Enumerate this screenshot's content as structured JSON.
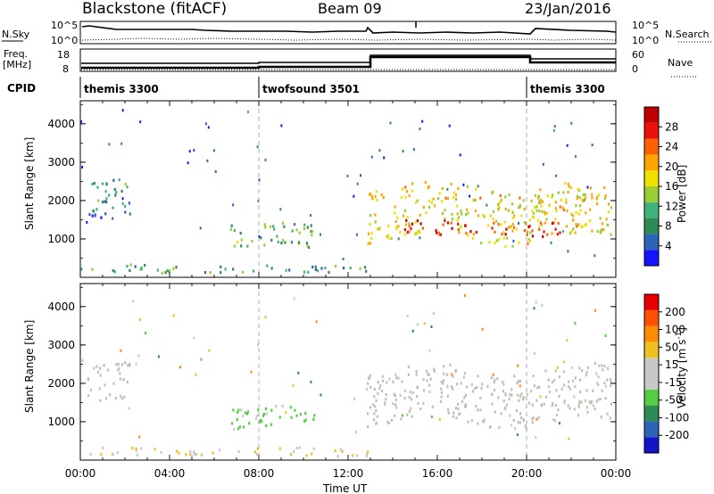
{
  "header": {
    "radar": "Blackstone (fitACF)",
    "beam": "Beam 09",
    "date": "23/Jan/2016"
  },
  "aux": {
    "nsky_label": "N.Sky",
    "nsearch_label": "N.Search",
    "freq_label": "Freq.",
    "freq_unit": "[MHz]",
    "nave_label": "Nave",
    "cpid_label": "CPID",
    "nsky_top_tick": "10^5",
    "nsky_bot_tick": "10^0",
    "nsearch_top_tick": "10^5",
    "nsearch_bot_tick": "10^0",
    "freq_ticks": [
      "18",
      "8"
    ],
    "nave_ticks": [
      "60",
      "0"
    ]
  },
  "cpid_segments": [
    {
      "label": "themis 3300",
      "start_hour": 0.0,
      "end_hour": 8.0
    },
    {
      "label": "twofsound 3501",
      "start_hour": 8.0,
      "end_hour": 20.0
    },
    {
      "label": "themis 3300",
      "start_hour": 20.0,
      "end_hour": 24.0
    }
  ],
  "colors": {
    "power_scale": [
      "#1414ff",
      "#2d64b4",
      "#2e8b57",
      "#3fb37b",
      "#9acd32",
      "#f0e000",
      "#ffa500",
      "#ff6000",
      "#e8120a",
      "#c00000"
    ],
    "velocity_scale": [
      "#1414c8",
      "#2e64b4",
      "#2e8b57",
      "#55cc44",
      "#c8c8c8",
      "#c8c8c8",
      "#f0c020",
      "#ff8c00",
      "#ff5000",
      "#e80000"
    ],
    "ground_scatter": "#c0c0b8"
  },
  "chart_data": [
    {
      "type": "heatmap",
      "name": "power",
      "ylabel": "Slant Range [km]",
      "xlim": [
        0,
        24
      ],
      "ylim": [
        0,
        4600
      ],
      "y_ticks": [
        "1000",
        "2000",
        "3000",
        "4000"
      ],
      "colorbar_label": "Power [dB]",
      "colorbar_ticks": [
        "28",
        "24",
        "20",
        "16",
        "12",
        "8",
        "4"
      ],
      "clim": [
        0,
        32
      ],
      "regions": [
        {
          "t0": 0.3,
          "t1": 2.2,
          "r0": 1500,
          "r1": 2500,
          "value": 8
        },
        {
          "t0": 6.7,
          "t1": 10.5,
          "r0": 800,
          "r1": 1400,
          "value": 12
        },
        {
          "t0": 12.8,
          "t1": 23.8,
          "r0": 1000,
          "r1": 2400,
          "value": 18
        },
        {
          "t0": 14.5,
          "t1": 21.5,
          "r0": 1100,
          "r1": 1500,
          "value": 27
        },
        {
          "t0": 0,
          "t1": 13,
          "r0": 150,
          "r1": 350,
          "value": 10
        }
      ]
    },
    {
      "type": "heatmap",
      "name": "velocity",
      "xlabel": "Time UT",
      "ylabel": "Slant Range [km]",
      "xlim": [
        0,
        24
      ],
      "ylim": [
        0,
        4600
      ],
      "x_ticks": [
        "00:00",
        "04:00",
        "08:00",
        "12:00",
        "16:00",
        "20:00",
        "00:00"
      ],
      "y_ticks": [
        "1000",
        "2000",
        "3000",
        "4000"
      ],
      "colorbar_label": "Velocity [m s^-1]",
      "colorbar_ticks": [
        "200",
        "100",
        "50",
        "15",
        "-15",
        "-50",
        "-100",
        "-200"
      ],
      "clim": [
        -250,
        250
      ],
      "regions": [
        {
          "t0": 0.3,
          "t1": 2.2,
          "r0": 1500,
          "r1": 2500,
          "value": 0
        },
        {
          "t0": 6.7,
          "t1": 10.5,
          "r0": 800,
          "r1": 1400,
          "value": -60
        },
        {
          "t0": 12.8,
          "t1": 23.8,
          "r0": 1000,
          "r1": 2400,
          "value": 0
        },
        {
          "t0": 0,
          "t1": 13,
          "r0": 150,
          "r1": 350,
          "value": 40
        }
      ]
    }
  ]
}
